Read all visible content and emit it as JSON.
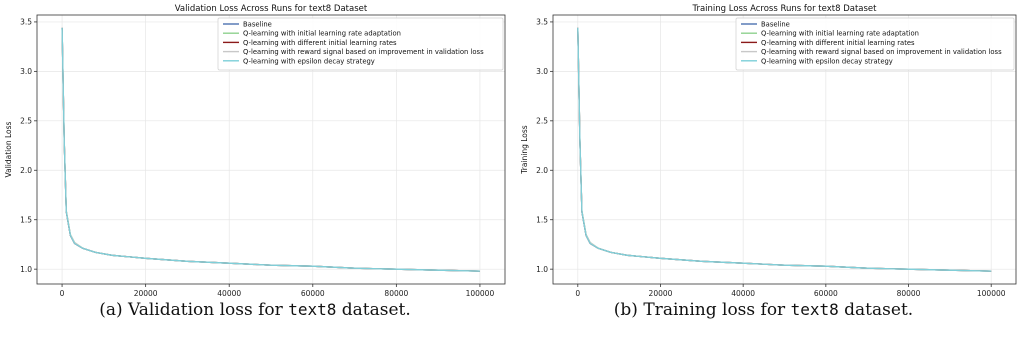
{
  "chart_data": [
    {
      "type": "line",
      "title": "Validation Loss Across Runs for text8 Dataset",
      "xlabel": "Iteration",
      "ylabel": "Validation Loss",
      "xlim": [
        -6000,
        106000
      ],
      "ylim": [
        0.85,
        3.57
      ],
      "xticks": [
        0,
        20000,
        40000,
        60000,
        80000,
        100000
      ],
      "yticks": [
        1.0,
        1.5,
        2.0,
        2.5,
        3.0,
        3.5
      ],
      "grid": true,
      "legend_position": "top-right",
      "x": [
        0,
        500,
        1000,
        2000,
        3000,
        5000,
        8000,
        12000,
        20000,
        30000,
        40000,
        50000,
        60000,
        70000,
        80000,
        90000,
        100000
      ],
      "series": [
        {
          "name": "Baseline",
          "color": "#4c72b0",
          "values": [
            3.44,
            2.3,
            1.58,
            1.34,
            1.26,
            1.21,
            1.17,
            1.14,
            1.11,
            1.08,
            1.06,
            1.04,
            1.03,
            1.01,
            1.0,
            0.99,
            0.98
          ]
        },
        {
          "name": "Q-learning with initial learning rate adaptation",
          "color": "#8fd18f",
          "values": [
            3.44,
            2.31,
            1.59,
            1.35,
            1.27,
            1.21,
            1.17,
            1.14,
            1.11,
            1.08,
            1.06,
            1.04,
            1.03,
            1.01,
            1.0,
            0.99,
            0.98
          ]
        },
        {
          "name": "Q-learning with different initial learning rates",
          "color": "#8b1a1a",
          "values": [
            3.44,
            2.3,
            1.58,
            1.34,
            1.26,
            1.21,
            1.17,
            1.14,
            1.11,
            1.08,
            1.06,
            1.04,
            1.03,
            1.01,
            1.0,
            0.99,
            0.98
          ]
        },
        {
          "name": "Q-learning with reward signal based on improvement in validation loss",
          "color": "#c8c8c8",
          "values": [
            3.44,
            2.31,
            1.59,
            1.35,
            1.27,
            1.21,
            1.17,
            1.14,
            1.11,
            1.08,
            1.06,
            1.04,
            1.03,
            1.01,
            1.0,
            0.99,
            0.98
          ]
        },
        {
          "name": "Q-learning with epsilon decay strategy",
          "color": "#7ecfd9",
          "values": [
            3.44,
            2.3,
            1.58,
            1.34,
            1.26,
            1.21,
            1.17,
            1.14,
            1.11,
            1.08,
            1.06,
            1.04,
            1.03,
            1.01,
            1.0,
            0.99,
            0.98
          ]
        }
      ]
    },
    {
      "type": "line",
      "title": "Training Loss Across Runs for text8 Dataset",
      "xlabel": "Iteration",
      "ylabel": "Training Loss",
      "xlim": [
        -6000,
        106000
      ],
      "ylim": [
        0.85,
        3.57
      ],
      "xticks": [
        0,
        20000,
        40000,
        60000,
        80000,
        100000
      ],
      "yticks": [
        1.0,
        1.5,
        2.0,
        2.5,
        3.0,
        3.5
      ],
      "grid": true,
      "legend_position": "top-right",
      "x": [
        0,
        500,
        1000,
        2000,
        3000,
        5000,
        8000,
        12000,
        20000,
        30000,
        40000,
        50000,
        60000,
        70000,
        80000,
        90000,
        100000
      ],
      "series": [
        {
          "name": "Baseline",
          "color": "#4c72b0",
          "values": [
            3.44,
            2.3,
            1.58,
            1.34,
            1.26,
            1.21,
            1.17,
            1.14,
            1.11,
            1.08,
            1.06,
            1.04,
            1.03,
            1.01,
            1.0,
            0.99,
            0.98
          ]
        },
        {
          "name": "Q-learning with initial learning rate adaptation",
          "color": "#8fd18f",
          "values": [
            3.44,
            2.31,
            1.59,
            1.35,
            1.27,
            1.21,
            1.17,
            1.14,
            1.11,
            1.08,
            1.06,
            1.04,
            1.03,
            1.01,
            1.0,
            0.99,
            0.98
          ]
        },
        {
          "name": "Q-learning with different initial learning rates",
          "color": "#8b1a1a",
          "values": [
            3.44,
            2.3,
            1.58,
            1.34,
            1.26,
            1.21,
            1.17,
            1.14,
            1.11,
            1.08,
            1.06,
            1.04,
            1.03,
            1.01,
            1.0,
            0.99,
            0.98
          ]
        },
        {
          "name": "Q-learning with reward signal based on improvement in validation loss",
          "color": "#c8c8c8",
          "values": [
            3.44,
            2.31,
            1.59,
            1.35,
            1.27,
            1.21,
            1.17,
            1.14,
            1.11,
            1.08,
            1.06,
            1.04,
            1.03,
            1.01,
            1.0,
            0.99,
            0.98
          ]
        },
        {
          "name": "Q-learning with epsilon decay strategy",
          "color": "#7ecfd9",
          "values": [
            3.44,
            2.3,
            1.58,
            1.34,
            1.26,
            1.21,
            1.17,
            1.14,
            1.11,
            1.08,
            1.06,
            1.04,
            1.03,
            1.01,
            1.0,
            0.99,
            0.98
          ]
        }
      ]
    }
  ],
  "captions": [
    {
      "prefix": "(a) Validation loss for ",
      "code": "text8",
      "suffix": " dataset."
    },
    {
      "prefix": "(b) Training loss for ",
      "code": "text8",
      "suffix": " dataset."
    }
  ]
}
